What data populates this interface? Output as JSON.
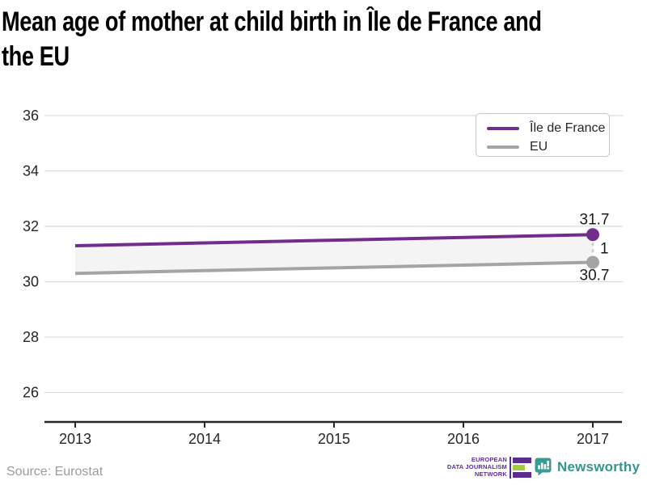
{
  "title": {
    "text": "Mean age of mother at child birth in Île de France and the EU",
    "lines": [
      "Mean age of mother at child birth in Île de France and",
      "the EU"
    ]
  },
  "legend": {
    "items": [
      {
        "label": "Île de France",
        "color": "#722c8d"
      },
      {
        "label": "EU",
        "color": "#a4a4a4"
      }
    ]
  },
  "chart_data": {
    "type": "line",
    "x": [
      2013,
      2014,
      2015,
      2016,
      2017
    ],
    "series": [
      {
        "name": "Île de France",
        "color": "#722c8d",
        "values": [
          31.3,
          31.4,
          31.5,
          31.6,
          31.7
        ]
      },
      {
        "name": "EU",
        "color": "#a4a4a4",
        "values": [
          30.3,
          30.4,
          30.5,
          30.6,
          30.7
        ]
      }
    ],
    "annotations": {
      "top": "31.7",
      "gap": "1",
      "bottom": "30.7"
    },
    "yticks": [
      36,
      34,
      32,
      30,
      28,
      26
    ],
    "xticks": [
      2013,
      2014,
      2015,
      2016,
      2017
    ],
    "ylim": [
      25,
      36.6
    ],
    "grid": true,
    "band_fill": "#f4f4f4",
    "grid_color": "#dcdcdc",
    "axis_color": "#262626",
    "label_color": "#262626",
    "annotation_color": "#1a1a1a",
    "connector_color": "#cccccc",
    "legend_position": "top-right"
  },
  "footer": {
    "source": "Source: Eurostat",
    "edjn": {
      "lines": [
        "EUROPEAN",
        "DATA JOURNALISM",
        "NETWORK"
      ],
      "purple": "#5c2d91",
      "green": "#a3cc3a"
    },
    "newsworthy": {
      "label": "Newsworthy",
      "icon_color": "#3a9b91",
      "text_color": "#38948b"
    }
  }
}
